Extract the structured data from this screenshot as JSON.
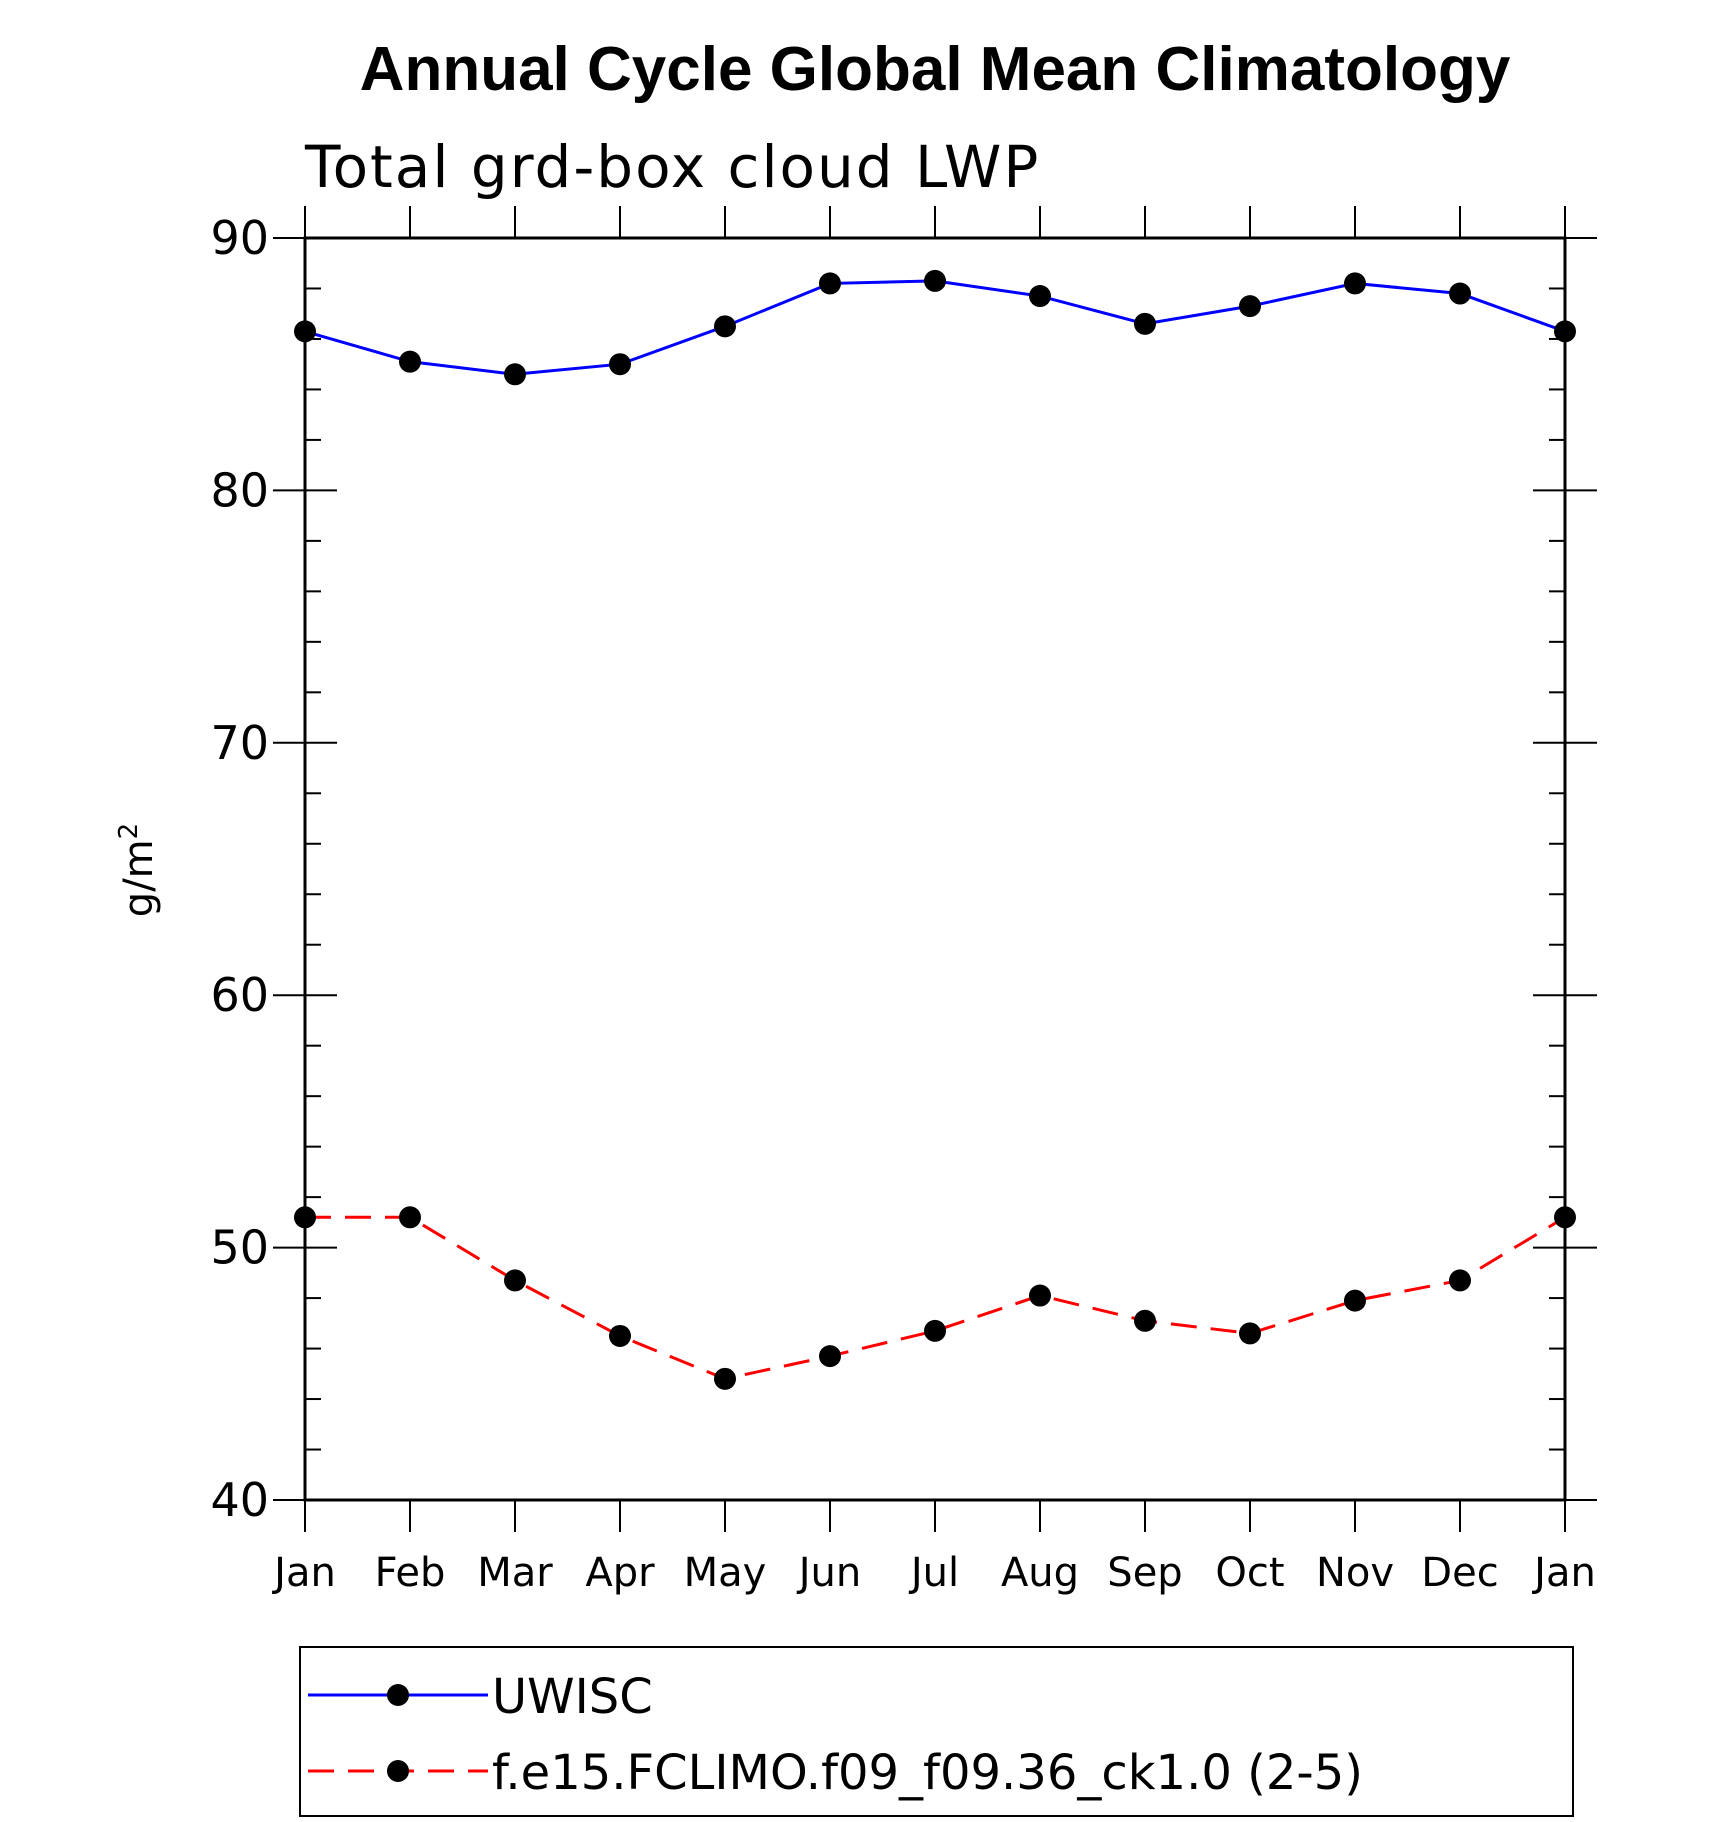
{
  "chart_data": {
    "type": "line",
    "title": "Annual Cycle Global Mean Climatology",
    "subtitle": "Total grd-box cloud LWP",
    "ylabel": "g/m",
    "ylabel_sup": "2",
    "ylim": [
      40,
      90
    ],
    "yticks": [
      "40",
      "50",
      "60",
      "70",
      "80",
      "90"
    ],
    "categories": [
      "Jan",
      "Feb",
      "Mar",
      "Apr",
      "May",
      "Jun",
      "Jul",
      "Aug",
      "Sep",
      "Oct",
      "Nov",
      "Dec",
      "Jan"
    ],
    "grid": false,
    "legend_position": "bottom",
    "series": [
      {
        "name": "UWISC",
        "color": "#0000ff",
        "dash": "solid",
        "values": [
          86.3,
          85.1,
          84.6,
          85.0,
          86.5,
          88.2,
          88.3,
          87.7,
          86.6,
          87.3,
          88.2,
          87.8,
          86.3
        ]
      },
      {
        "name": "f.e15.FCLIMO.f09_f09.36_ck1.0 (2-5)",
        "color": "#ff0000",
        "dash": "dashed",
        "values": [
          51.2,
          51.2,
          48.7,
          46.5,
          44.8,
          45.7,
          46.7,
          48.1,
          47.1,
          46.6,
          47.9,
          48.7,
          51.2
        ]
      }
    ]
  }
}
